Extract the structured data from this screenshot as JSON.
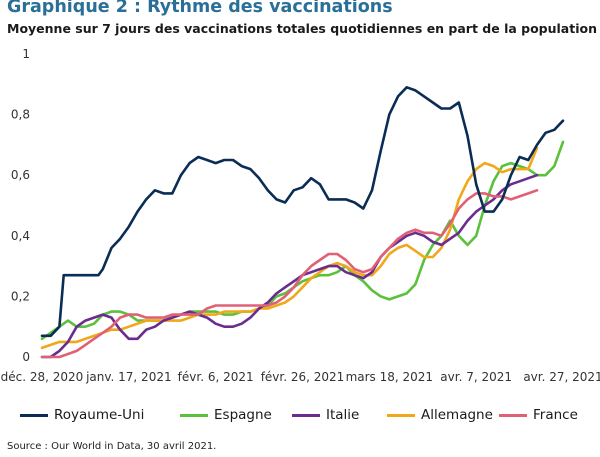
{
  "title": "Graphique 2 : Rythme des vaccinations",
  "subtitle": "Moyenne sur 7 jours des vaccinations totales quotidiennes en part de la population",
  "source": "Source : Our World in Data, 30 avril 2021.",
  "chart_data": {
    "type": "line",
    "title": "Graphique 2 : Rythme des vaccinations",
    "subtitle": "Moyenne sur 7 jours des vaccinations totales quotidiennes en part de la population",
    "xlabel": "",
    "ylabel": "",
    "x_range_days": [
      0,
      120
    ],
    "ylim": [
      0,
      1
    ],
    "grid": false,
    "x_ticks": [
      {
        "day": 0,
        "label": "déc. 28, 2020"
      },
      {
        "day": 20,
        "label": "janv. 17, 2021"
      },
      {
        "day": 40,
        "label": "févr. 6, 2021"
      },
      {
        "day": 60,
        "label": "févr. 26, 2021"
      },
      {
        "day": 80,
        "label": "mars 18, 2021"
      },
      {
        "day": 100,
        "label": "avr. 7, 2021"
      },
      {
        "day": 120,
        "label": "avr. 27, 2021"
      }
    ],
    "y_ticks": [
      {
        "value": 0,
        "label": "0"
      },
      {
        "value": 0.2,
        "label": "0,2"
      },
      {
        "value": 0.4,
        "label": "0,4"
      },
      {
        "value": 0.6,
        "label": "0,6"
      },
      {
        "value": 0.8,
        "label": "0,8"
      },
      {
        "value": 1,
        "label": "1"
      }
    ],
    "legend_position": "bottom",
    "series": [
      {
        "name": "Royaume-Uni",
        "color": "#0b2c55",
        "points": [
          [
            0,
            0.07
          ],
          [
            2,
            0.07
          ],
          [
            4,
            0.1
          ],
          [
            5,
            0.27
          ],
          [
            7,
            0.27
          ],
          [
            9,
            0.27
          ],
          [
            11,
            0.27
          ],
          [
            13,
            0.27
          ],
          [
            14,
            0.29
          ],
          [
            16,
            0.36
          ],
          [
            18,
            0.39
          ],
          [
            20,
            0.43
          ],
          [
            22,
            0.48
          ],
          [
            24,
            0.52
          ],
          [
            26,
            0.55
          ],
          [
            28,
            0.54
          ],
          [
            30,
            0.54
          ],
          [
            32,
            0.6
          ],
          [
            34,
            0.64
          ],
          [
            36,
            0.66
          ],
          [
            38,
            0.65
          ],
          [
            40,
            0.64
          ],
          [
            42,
            0.65
          ],
          [
            44,
            0.65
          ],
          [
            46,
            0.63
          ],
          [
            48,
            0.62
          ],
          [
            50,
            0.59
          ],
          [
            52,
            0.55
          ],
          [
            54,
            0.52
          ],
          [
            56,
            0.51
          ],
          [
            58,
            0.55
          ],
          [
            60,
            0.56
          ],
          [
            62,
            0.59
          ],
          [
            64,
            0.57
          ],
          [
            66,
            0.52
          ],
          [
            68,
            0.52
          ],
          [
            70,
            0.52
          ],
          [
            72,
            0.51
          ],
          [
            74,
            0.49
          ],
          [
            76,
            0.55
          ],
          [
            78,
            0.68
          ],
          [
            80,
            0.8
          ],
          [
            82,
            0.86
          ],
          [
            84,
            0.89
          ],
          [
            86,
            0.88
          ],
          [
            88,
            0.86
          ],
          [
            90,
            0.84
          ],
          [
            92,
            0.82
          ],
          [
            94,
            0.82
          ],
          [
            96,
            0.84
          ],
          [
            98,
            0.73
          ],
          [
            100,
            0.57
          ],
          [
            102,
            0.48
          ],
          [
            104,
            0.48
          ],
          [
            106,
            0.52
          ],
          [
            108,
            0.6
          ],
          [
            110,
            0.66
          ],
          [
            112,
            0.65
          ],
          [
            114,
            0.7
          ],
          [
            116,
            0.74
          ],
          [
            118,
            0.75
          ],
          [
            120,
            0.78
          ]
        ]
      },
      {
        "name": "Espagne",
        "color": "#5bc13b",
        "points": [
          [
            0,
            0.06
          ],
          [
            2,
            0.08
          ],
          [
            4,
            0.1
          ],
          [
            6,
            0.12
          ],
          [
            8,
            0.1
          ],
          [
            10,
            0.1
          ],
          [
            12,
            0.11
          ],
          [
            14,
            0.14
          ],
          [
            16,
            0.15
          ],
          [
            18,
            0.15
          ],
          [
            20,
            0.14
          ],
          [
            22,
            0.12
          ],
          [
            24,
            0.12
          ],
          [
            26,
            0.12
          ],
          [
            28,
            0.12
          ],
          [
            30,
            0.13
          ],
          [
            32,
            0.14
          ],
          [
            34,
            0.15
          ],
          [
            36,
            0.15
          ],
          [
            38,
            0.15
          ],
          [
            40,
            0.15
          ],
          [
            42,
            0.14
          ],
          [
            44,
            0.14
          ],
          [
            46,
            0.15
          ],
          [
            48,
            0.15
          ],
          [
            50,
            0.16
          ],
          [
            52,
            0.17
          ],
          [
            54,
            0.2
          ],
          [
            56,
            0.21
          ],
          [
            58,
            0.23
          ],
          [
            60,
            0.25
          ],
          [
            62,
            0.26
          ],
          [
            64,
            0.27
          ],
          [
            66,
            0.27
          ],
          [
            68,
            0.28
          ],
          [
            70,
            0.3
          ],
          [
            72,
            0.27
          ],
          [
            74,
            0.25
          ],
          [
            76,
            0.22
          ],
          [
            78,
            0.2
          ],
          [
            80,
            0.19
          ],
          [
            82,
            0.2
          ],
          [
            84,
            0.21
          ],
          [
            86,
            0.24
          ],
          [
            88,
            0.32
          ],
          [
            90,
            0.37
          ],
          [
            92,
            0.4
          ],
          [
            94,
            0.45
          ],
          [
            96,
            0.4
          ],
          [
            98,
            0.37
          ],
          [
            100,
            0.4
          ],
          [
            102,
            0.5
          ],
          [
            104,
            0.58
          ],
          [
            106,
            0.63
          ],
          [
            108,
            0.64
          ],
          [
            110,
            0.63
          ],
          [
            112,
            0.62
          ],
          [
            114,
            0.6
          ],
          [
            116,
            0.6
          ],
          [
            118,
            0.63
          ],
          [
            120,
            0.71
          ]
        ]
      },
      {
        "name": "Italie",
        "color": "#6a2c8f",
        "points": [
          [
            0,
            0
          ],
          [
            2,
            0
          ],
          [
            4,
            0.02
          ],
          [
            6,
            0.05
          ],
          [
            8,
            0.1
          ],
          [
            10,
            0.12
          ],
          [
            12,
            0.13
          ],
          [
            14,
            0.14
          ],
          [
            16,
            0.13
          ],
          [
            18,
            0.09
          ],
          [
            20,
            0.06
          ],
          [
            22,
            0.06
          ],
          [
            24,
            0.09
          ],
          [
            26,
            0.1
          ],
          [
            28,
            0.12
          ],
          [
            30,
            0.13
          ],
          [
            32,
            0.14
          ],
          [
            34,
            0.15
          ],
          [
            36,
            0.14
          ],
          [
            38,
            0.13
          ],
          [
            40,
            0.11
          ],
          [
            42,
            0.1
          ],
          [
            44,
            0.1
          ],
          [
            46,
            0.11
          ],
          [
            48,
            0.13
          ],
          [
            50,
            0.16
          ],
          [
            52,
            0.18
          ],
          [
            54,
            0.21
          ],
          [
            56,
            0.23
          ],
          [
            58,
            0.25
          ],
          [
            60,
            0.27
          ],
          [
            62,
            0.28
          ],
          [
            64,
            0.29
          ],
          [
            66,
            0.3
          ],
          [
            68,
            0.3
          ],
          [
            70,
            0.28
          ],
          [
            72,
            0.27
          ],
          [
            74,
            0.26
          ],
          [
            76,
            0.28
          ],
          [
            78,
            0.33
          ],
          [
            80,
            0.36
          ],
          [
            82,
            0.38
          ],
          [
            84,
            0.4
          ],
          [
            86,
            0.41
          ],
          [
            88,
            0.4
          ],
          [
            90,
            0.38
          ],
          [
            92,
            0.37
          ],
          [
            94,
            0.39
          ],
          [
            96,
            0.41
          ],
          [
            98,
            0.45
          ],
          [
            100,
            0.48
          ],
          [
            102,
            0.5
          ],
          [
            104,
            0.52
          ],
          [
            106,
            0.55
          ],
          [
            108,
            0.57
          ],
          [
            110,
            0.58
          ],
          [
            112,
            0.59
          ],
          [
            114,
            0.6
          ]
        ]
      },
      {
        "name": "Allemagne",
        "color": "#f0a818",
        "points": [
          [
            0,
            0.03
          ],
          [
            2,
            0.04
          ],
          [
            4,
            0.05
          ],
          [
            6,
            0.05
          ],
          [
            8,
            0.05
          ],
          [
            10,
            0.06
          ],
          [
            12,
            0.07
          ],
          [
            14,
            0.08
          ],
          [
            16,
            0.09
          ],
          [
            18,
            0.09
          ],
          [
            20,
            0.1
          ],
          [
            22,
            0.11
          ],
          [
            24,
            0.12
          ],
          [
            26,
            0.12
          ],
          [
            28,
            0.12
          ],
          [
            30,
            0.12
          ],
          [
            32,
            0.12
          ],
          [
            34,
            0.13
          ],
          [
            36,
            0.14
          ],
          [
            38,
            0.14
          ],
          [
            40,
            0.14
          ],
          [
            42,
            0.15
          ],
          [
            44,
            0.15
          ],
          [
            46,
            0.15
          ],
          [
            48,
            0.15
          ],
          [
            50,
            0.16
          ],
          [
            52,
            0.16
          ],
          [
            54,
            0.17
          ],
          [
            56,
            0.18
          ],
          [
            58,
            0.2
          ],
          [
            60,
            0.23
          ],
          [
            62,
            0.26
          ],
          [
            64,
            0.28
          ],
          [
            66,
            0.3
          ],
          [
            68,
            0.31
          ],
          [
            70,
            0.3
          ],
          [
            72,
            0.28
          ],
          [
            74,
            0.27
          ],
          [
            76,
            0.27
          ],
          [
            78,
            0.3
          ],
          [
            80,
            0.34
          ],
          [
            82,
            0.36
          ],
          [
            84,
            0.37
          ],
          [
            86,
            0.35
          ],
          [
            88,
            0.33
          ],
          [
            90,
            0.33
          ],
          [
            92,
            0.36
          ],
          [
            94,
            0.42
          ],
          [
            96,
            0.52
          ],
          [
            98,
            0.58
          ],
          [
            100,
            0.62
          ],
          [
            102,
            0.64
          ],
          [
            104,
            0.63
          ],
          [
            106,
            0.61
          ],
          [
            108,
            0.62
          ],
          [
            110,
            0.62
          ],
          [
            112,
            0.62
          ],
          [
            114,
            0.69
          ]
        ]
      },
      {
        "name": "France",
        "color": "#e06176",
        "points": [
          [
            0,
            0
          ],
          [
            2,
            0
          ],
          [
            4,
            0
          ],
          [
            6,
            0.01
          ],
          [
            8,
            0.02
          ],
          [
            10,
            0.04
          ],
          [
            12,
            0.06
          ],
          [
            14,
            0.08
          ],
          [
            16,
            0.1
          ],
          [
            18,
            0.13
          ],
          [
            20,
            0.14
          ],
          [
            22,
            0.14
          ],
          [
            24,
            0.13
          ],
          [
            26,
            0.13
          ],
          [
            28,
            0.13
          ],
          [
            30,
            0.14
          ],
          [
            32,
            0.14
          ],
          [
            34,
            0.14
          ],
          [
            36,
            0.14
          ],
          [
            38,
            0.16
          ],
          [
            40,
            0.17
          ],
          [
            42,
            0.17
          ],
          [
            44,
            0.17
          ],
          [
            46,
            0.17
          ],
          [
            48,
            0.17
          ],
          [
            50,
            0.17
          ],
          [
            52,
            0.17
          ],
          [
            54,
            0.18
          ],
          [
            56,
            0.2
          ],
          [
            58,
            0.23
          ],
          [
            60,
            0.27
          ],
          [
            62,
            0.3
          ],
          [
            64,
            0.32
          ],
          [
            66,
            0.34
          ],
          [
            68,
            0.34
          ],
          [
            70,
            0.32
          ],
          [
            72,
            0.29
          ],
          [
            74,
            0.28
          ],
          [
            76,
            0.29
          ],
          [
            78,
            0.33
          ],
          [
            80,
            0.36
          ],
          [
            82,
            0.39
          ],
          [
            84,
            0.41
          ],
          [
            86,
            0.42
          ],
          [
            88,
            0.41
          ],
          [
            90,
            0.41
          ],
          [
            92,
            0.4
          ],
          [
            94,
            0.44
          ],
          [
            96,
            0.49
          ],
          [
            98,
            0.52
          ],
          [
            100,
            0.54
          ],
          [
            102,
            0.54
          ],
          [
            104,
            0.53
          ],
          [
            106,
            0.53
          ],
          [
            108,
            0.52
          ],
          [
            110,
            0.53
          ],
          [
            112,
            0.54
          ],
          [
            114,
            0.55
          ]
        ]
      }
    ]
  }
}
